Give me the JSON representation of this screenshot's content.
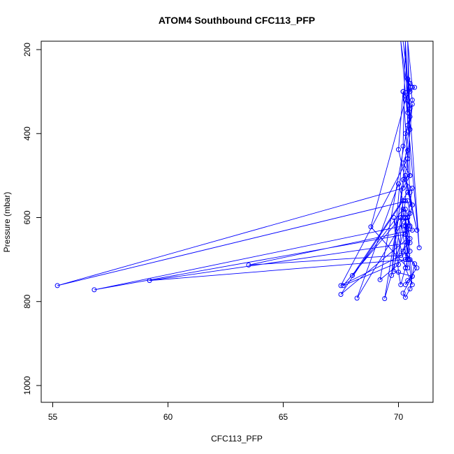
{
  "chart_data": {
    "type": "line",
    "title": "ATOM4 Southbound CFC113_PFP",
    "xlabel": "CFC113_PFP",
    "ylabel": "Pressure (mbar)",
    "xlim": [
      54.5,
      71.5
    ],
    "ylim": [
      1040,
      180
    ],
    "y_reversed": true,
    "x_ticks": [
      55,
      60,
      65,
      70
    ],
    "y_ticks": [
      200,
      400,
      600,
      800,
      1000
    ],
    "grid": false,
    "legend": "none",
    "line_color": "#0000ff",
    "marker": "open-circle",
    "series": [
      {
        "x": [
          70.2,
          70.4,
          70.5,
          70.3,
          70.6,
          70.4,
          70.5,
          70.3,
          70.4,
          70.2,
          70.5,
          70.2,
          55.2,
          70.4,
          70.5,
          70.3,
          70.3,
          56.8,
          70.2,
          70.4,
          70.5,
          59.2,
          70.4,
          70.3,
          70.6,
          63.5,
          70.1,
          70.4,
          67.5,
          70.2,
          70.0,
          68.2,
          70.3,
          70.5,
          67.5,
          70.4,
          69.4,
          70.3,
          70.6,
          69.8,
          70.2,
          70.0,
          69.2,
          70.4,
          70.3,
          70.2,
          69.7,
          70.6,
          70.5,
          68.8,
          70.4,
          70.1,
          67.6,
          70.3,
          70.5,
          70.2,
          68.0,
          70.4,
          70.6,
          70.3,
          70.8,
          70.0,
          70.2,
          70.7,
          70.4,
          70.9,
          70.1,
          70.5,
          70.3,
          70.4,
          70.2,
          70.5,
          70.4,
          70.6,
          70.4,
          70.3,
          70.5,
          70.3,
          70.2,
          70.4,
          70.6,
          70.3,
          70.4,
          70.1,
          70.0,
          69.8,
          70.3,
          70.6,
          70.4,
          70.7,
          70.5,
          70.3,
          70.2,
          70.6,
          70.4,
          70.3,
          70.8,
          70.5,
          70.2,
          70.4,
          70.3,
          70.5,
          70.4,
          70.6,
          70.2,
          70.5,
          70.4
        ],
        "y": [
          180,
          270,
          300,
          320,
          290,
          180,
          360,
          400,
          440,
          470,
          500,
          530,
          762,
          560,
          590,
          600,
          640,
          772,
          620,
          600,
          660,
          750,
          700,
          580,
          630,
          713,
          690,
          650,
          783,
          560,
          520,
          792,
          600,
          680,
          762,
          460,
          793,
          620,
          740,
          728,
          560,
          712,
          748,
          380,
          180,
          430,
          738,
          320,
          280,
          622,
          720,
          600,
          762,
          700,
          650,
          580,
          738,
          540,
          570,
          500,
          630,
          438,
          300,
          290,
          270,
          672,
          180,
          340,
          310,
          320,
          300,
          540,
          460,
          330,
          350,
          180,
          390,
          560,
          600,
          620,
          570,
          640,
          700,
          760,
          730,
          600,
          720,
          760,
          690,
          710,
          770,
          790,
          780,
          740,
          750,
          760,
          720,
          700,
          680,
          660,
          640,
          620,
          600,
          530,
          510,
          500,
          180
        ]
      }
    ]
  }
}
